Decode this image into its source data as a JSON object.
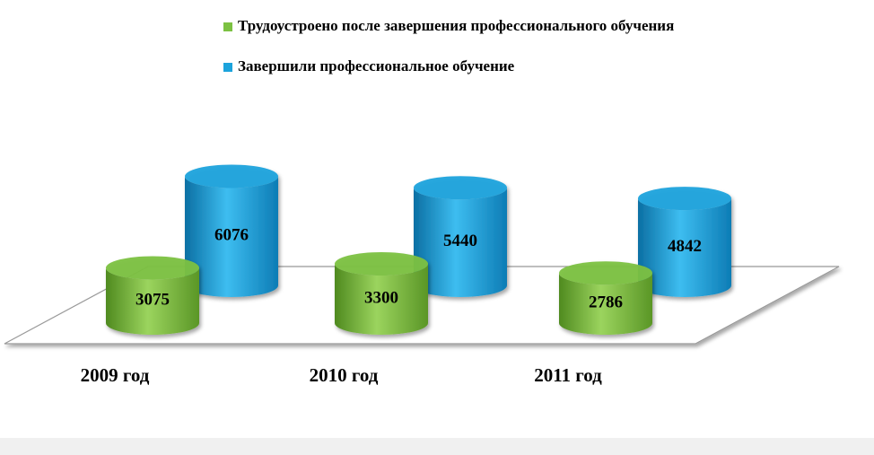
{
  "chart_data": {
    "type": "bar",
    "categories": [
      "2009 год",
      "2010 год",
      "2011 год"
    ],
    "series": [
      {
        "name": "Трудоустроено после завершения профессионального обучения",
        "color": "#7cc142",
        "values": [
          3075,
          3300,
          2786
        ]
      },
      {
        "name": "Завершили профессиональное обучение",
        "color": "#1ca3dc",
        "values": [
          6076,
          5440,
          4842
        ]
      }
    ]
  }
}
